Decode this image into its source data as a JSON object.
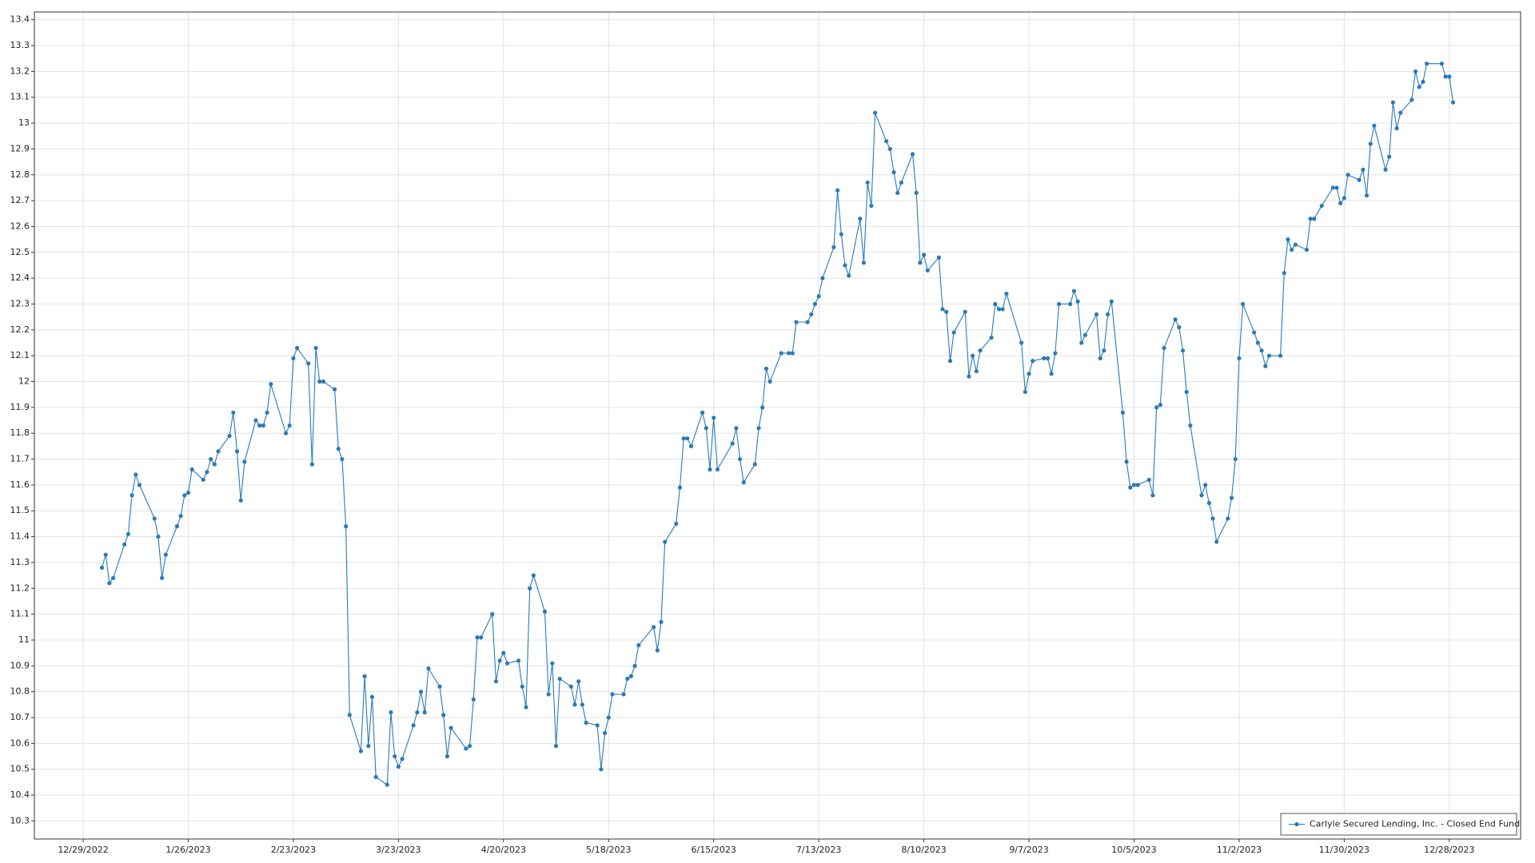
{
  "chart_data": {
    "type": "line",
    "series": [
      {
        "name": "Carlyle Secured Lending, Inc. - Closed End Fund",
        "color": "#2a7ab9",
        "x": [
          "2023-01-03",
          "2023-01-04",
          "2023-01-05",
          "2023-01-06",
          "2023-01-09",
          "2023-01-10",
          "2023-01-11",
          "2023-01-12",
          "2023-01-13",
          "2023-01-17",
          "2023-01-18",
          "2023-01-19",
          "2023-01-20",
          "2023-01-23",
          "2023-01-24",
          "2023-01-25",
          "2023-01-26",
          "2023-01-27",
          "2023-01-30",
          "2023-01-31",
          "2023-02-01",
          "2023-02-02",
          "2023-02-03",
          "2023-02-06",
          "2023-02-07",
          "2023-02-08",
          "2023-02-09",
          "2023-02-10",
          "2023-02-13",
          "2023-02-14",
          "2023-02-15",
          "2023-02-16",
          "2023-02-17",
          "2023-02-21",
          "2023-02-22",
          "2023-02-23",
          "2023-02-24",
          "2023-02-27",
          "2023-02-28",
          "2023-03-01",
          "2023-03-02",
          "2023-03-03",
          "2023-03-06",
          "2023-03-07",
          "2023-03-08",
          "2023-03-09",
          "2023-03-10",
          "2023-03-13",
          "2023-03-14",
          "2023-03-15",
          "2023-03-16",
          "2023-03-17",
          "2023-03-20",
          "2023-03-21",
          "2023-03-22",
          "2023-03-23",
          "2023-03-24",
          "2023-03-27",
          "2023-03-28",
          "2023-03-29",
          "2023-03-30",
          "2023-03-31",
          "2023-04-03",
          "2023-04-04",
          "2023-04-05",
          "2023-04-06",
          "2023-04-10",
          "2023-04-11",
          "2023-04-12",
          "2023-04-13",
          "2023-04-14",
          "2023-04-17",
          "2023-04-18",
          "2023-04-19",
          "2023-04-20",
          "2023-04-21",
          "2023-04-24",
          "2023-04-25",
          "2023-04-26",
          "2023-04-27",
          "2023-04-28",
          "2023-05-01",
          "2023-05-02",
          "2023-05-03",
          "2023-05-04",
          "2023-05-05",
          "2023-05-08",
          "2023-05-09",
          "2023-05-10",
          "2023-05-11",
          "2023-05-12",
          "2023-05-15",
          "2023-05-16",
          "2023-05-17",
          "2023-05-18",
          "2023-05-19",
          "2023-05-22",
          "2023-05-23",
          "2023-05-24",
          "2023-05-25",
          "2023-05-26",
          "2023-05-30",
          "2023-05-31",
          "2023-06-01",
          "2023-06-02",
          "2023-06-05",
          "2023-06-06",
          "2023-06-07",
          "2023-06-08",
          "2023-06-09",
          "2023-06-12",
          "2023-06-13",
          "2023-06-14",
          "2023-06-15",
          "2023-06-16",
          "2023-06-20",
          "2023-06-21",
          "2023-06-22",
          "2023-06-23",
          "2023-06-26",
          "2023-06-27",
          "2023-06-28",
          "2023-06-29",
          "2023-06-30",
          "2023-07-03",
          "2023-07-05",
          "2023-07-06",
          "2023-07-07",
          "2023-07-10",
          "2023-07-11",
          "2023-07-12",
          "2023-07-13",
          "2023-07-14",
          "2023-07-17",
          "2023-07-18",
          "2023-07-19",
          "2023-07-20",
          "2023-07-21",
          "2023-07-24",
          "2023-07-25",
          "2023-07-26",
          "2023-07-27",
          "2023-07-28",
          "2023-07-31",
          "2023-08-01",
          "2023-08-02",
          "2023-08-03",
          "2023-08-04",
          "2023-08-07",
          "2023-08-08",
          "2023-08-09",
          "2023-08-10",
          "2023-08-11",
          "2023-08-14",
          "2023-08-15",
          "2023-08-16",
          "2023-08-17",
          "2023-08-18",
          "2023-08-21",
          "2023-08-22",
          "2023-08-23",
          "2023-08-24",
          "2023-08-25",
          "2023-08-28",
          "2023-08-29",
          "2023-08-30",
          "2023-08-31",
          "2023-09-01",
          "2023-09-05",
          "2023-09-06",
          "2023-09-07",
          "2023-09-08",
          "2023-09-11",
          "2023-09-12",
          "2023-09-13",
          "2023-09-14",
          "2023-09-15",
          "2023-09-18",
          "2023-09-19",
          "2023-09-20",
          "2023-09-21",
          "2023-09-22",
          "2023-09-25",
          "2023-09-26",
          "2023-09-27",
          "2023-09-28",
          "2023-09-29",
          "2023-10-02",
          "2023-10-03",
          "2023-10-04",
          "2023-10-05",
          "2023-10-06",
          "2023-10-09",
          "2023-10-10",
          "2023-10-11",
          "2023-10-12",
          "2023-10-13",
          "2023-10-16",
          "2023-10-17",
          "2023-10-18",
          "2023-10-19",
          "2023-10-20",
          "2023-10-23",
          "2023-10-24",
          "2023-10-25",
          "2023-10-26",
          "2023-10-27",
          "2023-10-30",
          "2023-10-31",
          "2023-11-01",
          "2023-11-02",
          "2023-11-03",
          "2023-11-06",
          "2023-11-07",
          "2023-11-08",
          "2023-11-09",
          "2023-11-10",
          "2023-11-13",
          "2023-11-14",
          "2023-11-15",
          "2023-11-16",
          "2023-11-17",
          "2023-11-20",
          "2023-11-21",
          "2023-11-22",
          "2023-11-24",
          "2023-11-27",
          "2023-11-28",
          "2023-11-29",
          "2023-11-30",
          "2023-12-01",
          "2023-12-04",
          "2023-12-05",
          "2023-12-06",
          "2023-12-07",
          "2023-12-08",
          "2023-12-11",
          "2023-12-12",
          "2023-12-13",
          "2023-12-14",
          "2023-12-15",
          "2023-12-18",
          "2023-12-19",
          "2023-12-20",
          "2023-12-21",
          "2023-12-22",
          "2023-12-26",
          "2023-12-27",
          "2023-12-28",
          "2023-12-29"
        ],
        "values": [
          11.28,
          11.33,
          11.22,
          11.24,
          11.37,
          11.41,
          11.56,
          11.64,
          11.6,
          11.47,
          11.4,
          11.24,
          11.33,
          11.44,
          11.48,
          11.56,
          11.57,
          11.66,
          11.62,
          11.65,
          11.7,
          11.68,
          11.73,
          11.79,
          11.88,
          11.73,
          11.54,
          11.69,
          11.85,
          11.83,
          11.83,
          11.88,
          11.99,
          11.8,
          11.83,
          12.09,
          12.13,
          12.07,
          11.68,
          12.13,
          12.0,
          12.0,
          11.97,
          11.74,
          11.7,
          11.44,
          10.71,
          10.57,
          10.86,
          10.59,
          10.78,
          10.47,
          10.44,
          10.72,
          10.55,
          10.51,
          10.54,
          10.67,
          10.72,
          10.8,
          10.72,
          10.89,
          10.82,
          10.71,
          10.55,
          10.66,
          10.58,
          10.59,
          10.77,
          11.01,
          11.01,
          11.1,
          10.84,
          10.92,
          10.95,
          10.91,
          10.92,
          10.82,
          10.74,
          11.2,
          11.25,
          11.11,
          10.79,
          10.91,
          10.59,
          10.85,
          10.82,
          10.75,
          10.84,
          10.75,
          10.68,
          10.67,
          10.5,
          10.64,
          10.7,
          10.79,
          10.79,
          10.85,
          10.86,
          10.9,
          10.98,
          11.05,
          10.96,
          11.07,
          11.38,
          11.45,
          11.59,
          11.78,
          11.78,
          11.75,
          11.88,
          11.82,
          11.66,
          11.86,
          11.66,
          11.76,
          11.82,
          11.7,
          11.61,
          11.68,
          11.82,
          11.9,
          12.05,
          12.0,
          12.11,
          12.11,
          12.11,
          12.23,
          12.23,
          12.26,
          12.3,
          12.33,
          12.4,
          12.52,
          12.74,
          12.57,
          12.45,
          12.41,
          12.63,
          12.46,
          12.77,
          12.68,
          13.04,
          12.93,
          12.9,
          12.81,
          12.73,
          12.77,
          12.88,
          12.73,
          12.46,
          12.49,
          12.43,
          12.48,
          12.28,
          12.27,
          12.08,
          12.19,
          12.27,
          12.02,
          12.1,
          12.04,
          12.12,
          12.17,
          12.3,
          12.28,
          12.28,
          12.34,
          12.15,
          11.96,
          12.03,
          12.08,
          12.09,
          12.09,
          12.03,
          12.11,
          12.3,
          12.3,
          12.35,
          12.31,
          12.15,
          12.18,
          12.26,
          12.09,
          12.12,
          12.26,
          12.31,
          11.88,
          11.69,
          11.59,
          11.6,
          11.6,
          11.62,
          11.56,
          11.9,
          11.91,
          12.13,
          12.24,
          12.21,
          12.12,
          11.96,
          11.83,
          11.56,
          11.6,
          11.53,
          11.47,
          11.38,
          11.47,
          11.55,
          11.7,
          12.09,
          12.3,
          12.19,
          12.15,
          12.12,
          12.06,
          12.1,
          12.1,
          12.42,
          12.55,
          12.51,
          12.53,
          12.51,
          12.63,
          12.63,
          12.68,
          12.75,
          12.75,
          12.69,
          12.71,
          12.8,
          12.78,
          12.82,
          12.72,
          12.92,
          12.99,
          12.82,
          12.87,
          13.08,
          12.98,
          13.04,
          13.09,
          13.2,
          13.14,
          13.16,
          13.23,
          13.23,
          13.18,
          13.18,
          13.08
        ]
      }
    ],
    "xlim": [
      "2022-12-16",
      "2024-01-16"
    ],
    "xticks": [
      {
        "value": "2022-12-29",
        "label": "12/29/2022"
      },
      {
        "value": "2023-01-26",
        "label": "1/26/2023"
      },
      {
        "value": "2023-02-23",
        "label": "2/23/2023"
      },
      {
        "value": "2023-03-23",
        "label": "3/23/2023"
      },
      {
        "value": "2023-04-20",
        "label": "4/20/2023"
      },
      {
        "value": "2023-05-18",
        "label": "5/18/2023"
      },
      {
        "value": "2023-06-15",
        "label": "6/15/2023"
      },
      {
        "value": "2023-07-13",
        "label": "7/13/2023"
      },
      {
        "value": "2023-08-10",
        "label": "8/10/2023"
      },
      {
        "value": "2023-09-07",
        "label": "9/7/2023"
      },
      {
        "value": "2023-10-05",
        "label": "10/5/2023"
      },
      {
        "value": "2023-11-02",
        "label": "11/2/2023"
      },
      {
        "value": "2023-11-30",
        "label": "11/30/2023"
      },
      {
        "value": "2023-12-28",
        "label": "12/28/2023"
      }
    ],
    "ylim": [
      10.23,
      13.43
    ],
    "yticks": [
      10.3,
      10.4,
      10.5,
      10.6,
      10.7,
      10.8,
      10.9,
      11,
      11.1,
      11.2,
      11.3,
      11.4,
      11.5,
      11.6,
      11.7,
      11.8,
      11.9,
      12,
      12.1,
      12.2,
      12.3,
      12.4,
      12.5,
      12.6,
      12.7,
      12.8,
      12.9,
      13,
      13.1,
      13.2,
      13.3,
      13.4
    ],
    "grid": true,
    "legend": "lower right"
  }
}
